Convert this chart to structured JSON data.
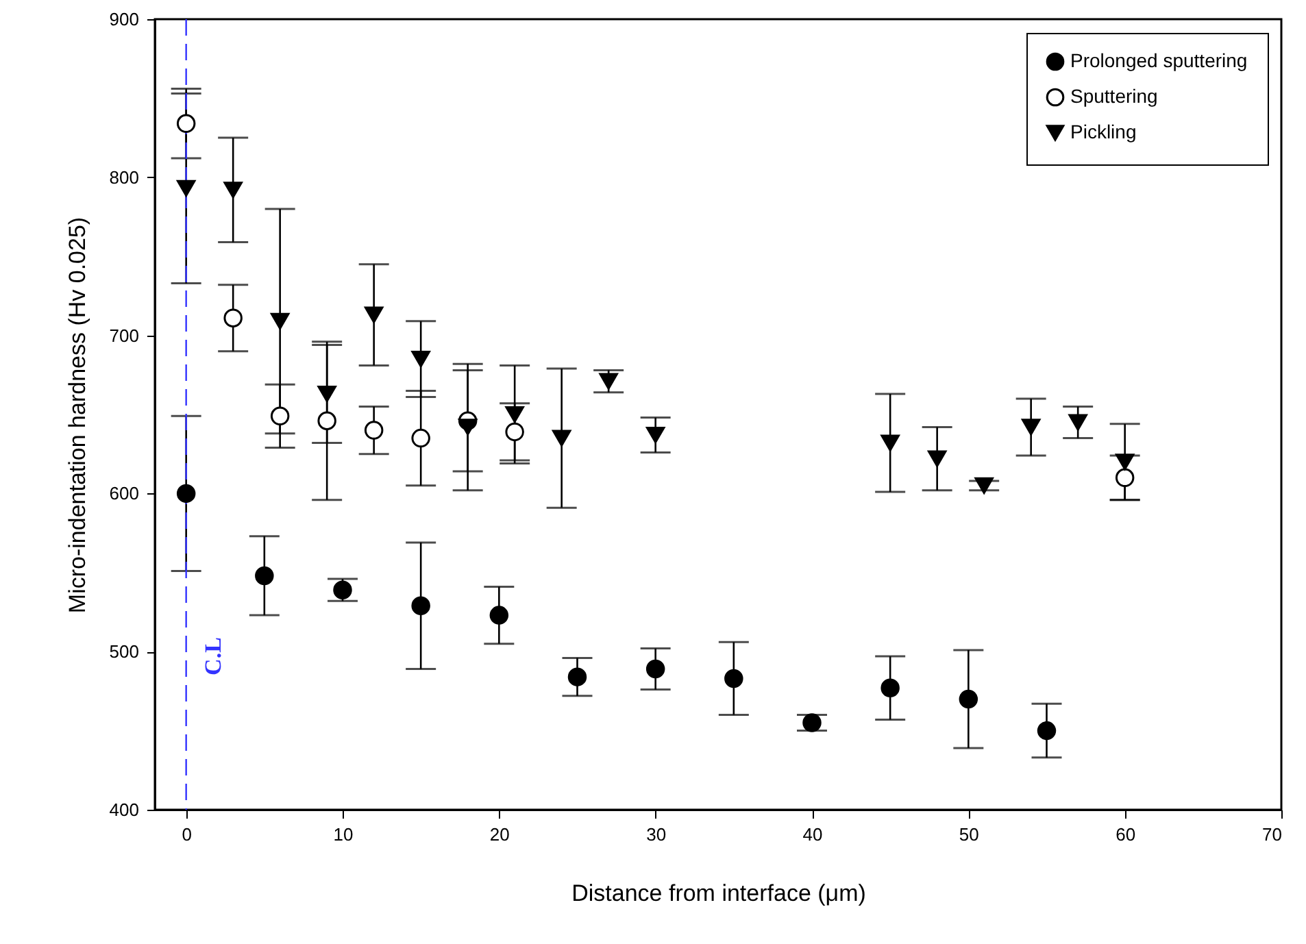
{
  "chart_data": {
    "type": "scatter",
    "xlabel": "Distance from interface (μm)",
    "ylabel": "Micro-indentation hardness (Hv 0.025)",
    "xlim": [
      -2,
      70
    ],
    "xticks": [
      0,
      10,
      20,
      30,
      40,
      50,
      60,
      70
    ],
    "ylim": [
      400,
      900
    ],
    "yticks": [
      400,
      500,
      600,
      700,
      800,
      900
    ],
    "grid": false,
    "legend": "top right",
    "ref_lines": [
      {
        "axis": "x",
        "value": 0,
        "label": "C.L",
        "color": "#3333ff",
        "line_style": "dashed"
      }
    ],
    "series": [
      {
        "name": "Prolonged sputtering",
        "color": "#000000",
        "marker": "circle",
        "x": [
          0,
          5,
          10,
          15,
          20,
          25,
          30,
          35,
          40,
          45,
          50,
          55
        ],
        "values": [
          600,
          548,
          539,
          529,
          523,
          484,
          489,
          483,
          455,
          477,
          470,
          450
        ],
        "errors": [
          49,
          25,
          7,
          40,
          18,
          12,
          13,
          23,
          5,
          20,
          31,
          17
        ]
      },
      {
        "name": "Sputtering",
        "color": "#ffffff",
        "marker": "circle",
        "x": [
          0,
          3,
          6,
          9,
          12,
          15,
          18,
          21,
          60
        ],
        "values": [
          834,
          711,
          649,
          646,
          640,
          635,
          646,
          639,
          610
        ],
        "errors": [
          22,
          21,
          20,
          50,
          15,
          30,
          32,
          18,
          14
        ]
      },
      {
        "name": "Pickling",
        "color": "#000000",
        "marker": "triangle",
        "x": [
          0,
          3,
          6,
          9,
          12,
          15,
          18,
          21,
          24,
          27,
          30,
          45,
          48,
          51,
          54,
          57,
          60
        ],
        "values": [
          793,
          792,
          709,
          663,
          713,
          685,
          642,
          650,
          635,
          671,
          637,
          632,
          622,
          605,
          642,
          645,
          620
        ],
        "errors": [
          60,
          33,
          71,
          31,
          32,
          24,
          40,
          31,
          44,
          7,
          11,
          31,
          20,
          3,
          18,
          10,
          24
        ]
      }
    ]
  }
}
